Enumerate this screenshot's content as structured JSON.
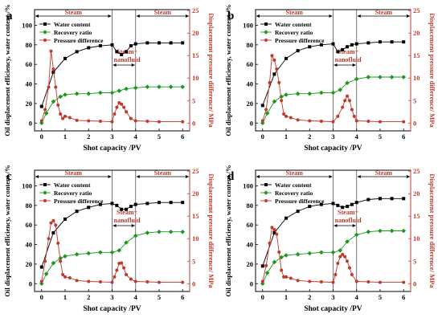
{
  "chart_data": [
    {
      "type": "line",
      "panel_label": "a",
      "xlabel": "Shot capacity /PV",
      "ylabel_left": "Oil displacement efficiency, water content /%",
      "ylabel_right": "Displacement pressure difference/ MPa",
      "xlim": [
        -0.3,
        6.3
      ],
      "ylim_left": [
        -8,
        116
      ],
      "ylim_right": [
        -1.739,
        25.217
      ],
      "x_ticks": [
        "0",
        "1",
        "2",
        "3",
        "4",
        "5",
        "6"
      ],
      "y_ticks_left": [
        "0",
        "20",
        "40",
        "60",
        "80",
        "100"
      ],
      "y_ticks_right": [
        "0",
        "5",
        "10",
        "15",
        "20",
        "25"
      ],
      "stages": [
        {
          "label": "Steam",
          "from": -0.3,
          "to": 3.0
        },
        {
          "label": "Steam+\nnanofluid",
          "from": 3.0,
          "to": 4.0
        },
        {
          "label": "Steam",
          "from": 4.0,
          "to": 6.3
        }
      ],
      "legend_position": "top-left",
      "series": [
        {
          "name": "Water content",
          "axis": "left",
          "color": "#000000",
          "marker": "square",
          "x": [
            0,
            0.5,
            1.0,
            1.5,
            2.0,
            2.5,
            3.0,
            3.2,
            3.4,
            3.6,
            3.8,
            4.0,
            4.5,
            5.0,
            5.5,
            6.0
          ],
          "y": [
            17,
            52,
            66,
            73,
            77,
            79,
            80,
            73,
            70,
            73,
            79,
            81,
            82,
            82,
            82,
            82
          ]
        },
        {
          "name": "Recovery ratio",
          "axis": "left",
          "color": "#1a9a1a",
          "marker": "diamond",
          "x": [
            0,
            0.2,
            0.5,
            0.8,
            1.0,
            1.5,
            2.0,
            2.5,
            3.0,
            3.3,
            3.6,
            4.0,
            4.5,
            5.0,
            5.5,
            6.0
          ],
          "y": [
            0,
            10,
            22,
            27,
            29,
            30,
            30,
            31,
            31,
            33,
            35,
            36,
            37,
            37,
            37,
            37
          ]
        },
        {
          "name": "Pressure difference",
          "axis": "right",
          "color": "#c0392b",
          "marker": "circle",
          "x": [
            0,
            0.15,
            0.3,
            0.4,
            0.5,
            0.6,
            0.7,
            0.8,
            0.9,
            1.0,
            1.2,
            1.5,
            2.0,
            2.5,
            3.0,
            3.1,
            3.2,
            3.3,
            3.4,
            3.5,
            3.6,
            3.8,
            4.0,
            4.5,
            5.0,
            6.0
          ],
          "y": [
            0.5,
            3,
            8,
            16,
            12,
            8,
            4,
            2,
            1,
            1.5,
            1.2,
            0.6,
            0.5,
            0.4,
            0.3,
            2,
            3.5,
            4.5,
            4.2,
            3.5,
            2.5,
            1,
            0.5,
            0.4,
            0.3,
            0.3
          ]
        }
      ]
    },
    {
      "type": "line",
      "panel_label": "b",
      "xlabel": "Shot capacity /PV",
      "ylabel_left": "Oil displacement efficiency, water content /%",
      "ylabel_right": "Displacement pressure difference/ MPa",
      "xlim": [
        -0.3,
        6.3
      ],
      "ylim_left": [
        -8,
        116
      ],
      "ylim_right": [
        -1.739,
        25.217
      ],
      "x_ticks": [
        "0",
        "1",
        "2",
        "3",
        "4",
        "5",
        "6"
      ],
      "y_ticks_left": [
        "0",
        "20",
        "40",
        "60",
        "80",
        "100"
      ],
      "y_ticks_right": [
        "0",
        "5",
        "10",
        "15",
        "20",
        "25"
      ],
      "stages": [
        {
          "label": "Steam",
          "from": -0.3,
          "to": 3.0
        },
        {
          "label": "Steam+\nnanofluid",
          "from": 3.0,
          "to": 4.0
        },
        {
          "label": "Steam",
          "from": 4.0,
          "to": 6.3
        }
      ],
      "legend_position": "top-left",
      "series": [
        {
          "name": "Water content",
          "axis": "left",
          "color": "#000000",
          "marker": "square",
          "x": [
            0,
            0.5,
            1.0,
            1.5,
            2.0,
            2.5,
            3.0,
            3.2,
            3.4,
            3.6,
            3.8,
            4.0,
            4.5,
            5.0,
            5.5,
            6.0
          ],
          "y": [
            18,
            50,
            66,
            74,
            78,
            80,
            81,
            73,
            75,
            78,
            80,
            81,
            82,
            83,
            83,
            83
          ]
        },
        {
          "name": "Recovery ratio",
          "axis": "left",
          "color": "#1a9a1a",
          "marker": "diamond",
          "x": [
            0,
            0.2,
            0.5,
            0.8,
            1.0,
            1.5,
            2.0,
            2.5,
            3.0,
            3.3,
            3.6,
            4.0,
            4.5,
            5.0,
            5.5,
            6.0
          ],
          "y": [
            0,
            10,
            22,
            27,
            29,
            30,
            30,
            31,
            31,
            34,
            41,
            45,
            47,
            47,
            47,
            47
          ]
        },
        {
          "name": "Pressure difference",
          "axis": "right",
          "color": "#c0392b",
          "marker": "circle",
          "x": [
            0,
            0.15,
            0.3,
            0.4,
            0.5,
            0.6,
            0.7,
            0.8,
            0.9,
            1.0,
            1.2,
            1.5,
            2.0,
            2.5,
            3.0,
            3.2,
            3.4,
            3.5,
            3.6,
            3.7,
            3.8,
            3.9,
            4.0,
            4.5,
            5.0,
            6.0
          ],
          "y": [
            0.5,
            3,
            9,
            15,
            14,
            12,
            9,
            5,
            2,
            1.5,
            1.2,
            0.7,
            0.5,
            0.4,
            0.3,
            1.5,
            3.5,
            5,
            6,
            5,
            3,
            1.5,
            0.5,
            0.4,
            0.3,
            0.3
          ]
        }
      ]
    },
    {
      "type": "line",
      "panel_label": "c",
      "xlabel": "Shot capacity /PV",
      "ylabel_left": "Oil displacement efficiency, water content /%",
      "ylabel_right": "Displacement pressure difference/ MPa",
      "xlim": [
        -0.3,
        6.3
      ],
      "ylim_left": [
        -8,
        116
      ],
      "ylim_right": [
        -1.739,
        25.217
      ],
      "x_ticks": [
        "0",
        "1",
        "2",
        "3",
        "4",
        "5",
        "6"
      ],
      "y_ticks_left": [
        "0",
        "20",
        "40",
        "60",
        "80",
        "100"
      ],
      "y_ticks_right": [
        "0",
        "5",
        "10",
        "15",
        "20",
        "25"
      ],
      "stages": [
        {
          "label": "Steam",
          "from": -0.3,
          "to": 3.0
        },
        {
          "label": "Steam+\nnanofluid",
          "from": 3.0,
          "to": 4.0
        },
        {
          "label": "Steam",
          "from": 4.0,
          "to": 6.3
        }
      ],
      "legend_position": "top-left",
      "series": [
        {
          "name": "Water content",
          "axis": "left",
          "color": "#000000",
          "marker": "square",
          "x": [
            0,
            0.5,
            1.0,
            1.5,
            2.0,
            2.5,
            3.0,
            3.2,
            3.4,
            3.6,
            3.8,
            4.0,
            4.5,
            5.0,
            5.5,
            6.0
          ],
          "y": [
            17,
            52,
            66,
            74,
            78,
            81,
            82,
            80,
            76,
            76,
            79,
            81,
            82,
            83,
            83,
            83
          ]
        },
        {
          "name": "Recovery ratio",
          "axis": "left",
          "color": "#1a9a1a",
          "marker": "diamond",
          "x": [
            0,
            0.2,
            0.5,
            0.8,
            1.0,
            1.5,
            2.0,
            2.5,
            3.0,
            3.3,
            3.6,
            4.0,
            4.5,
            5.0,
            5.5,
            6.0
          ],
          "y": [
            0,
            10,
            21,
            26,
            28,
            30,
            31,
            32,
            32,
            34,
            42,
            49,
            52,
            53,
            53,
            53
          ]
        },
        {
          "name": "Pressure difference",
          "axis": "right",
          "color": "#c0392b",
          "marker": "circle",
          "x": [
            0,
            0.15,
            0.3,
            0.4,
            0.5,
            0.6,
            0.7,
            0.8,
            0.9,
            1.0,
            1.2,
            1.5,
            2.0,
            2.5,
            3.0,
            3.1,
            3.2,
            3.3,
            3.4,
            3.5,
            3.6,
            3.8,
            4.0,
            4.5,
            5.0,
            6.0
          ],
          "y": [
            0.5,
            5,
            10,
            13.5,
            14,
            13,
            9,
            5,
            2,
            1.5,
            1.3,
            0.7,
            0.5,
            0.4,
            0.3,
            1.5,
            3,
            4.5,
            4.6,
            3.5,
            2,
            1,
            0.5,
            0.4,
            0.3,
            0.3
          ]
        }
      ]
    },
    {
      "type": "line",
      "panel_label": "d",
      "xlabel": "Shot capacity /PV",
      "ylabel_left": "Oil displacement efficiency, water content /%",
      "ylabel_right": "Displacement pressure difference/ MPa",
      "xlim": [
        -0.3,
        6.3
      ],
      "ylim_left": [
        -8,
        116
      ],
      "ylim_right": [
        -1.739,
        25.217
      ],
      "x_ticks": [
        "0",
        "1",
        "2",
        "3",
        "4",
        "5",
        "6"
      ],
      "y_ticks_left": [
        "0",
        "20",
        "40",
        "60",
        "80",
        "100"
      ],
      "y_ticks_right": [
        "0",
        "5",
        "10",
        "15",
        "20",
        "25"
      ],
      "stages": [
        {
          "label": "Steam",
          "from": -0.3,
          "to": 3.0
        },
        {
          "label": "Steam+\nnanofluid",
          "from": 3.0,
          "to": 4.0
        },
        {
          "label": "Steam",
          "from": 4.0,
          "to": 6.3
        }
      ],
      "legend_position": "top-left",
      "series": [
        {
          "name": "Water content",
          "axis": "left",
          "color": "#000000",
          "marker": "square",
          "x": [
            0,
            0.5,
            1.0,
            1.5,
            2.0,
            2.5,
            3.0,
            3.2,
            3.4,
            3.6,
            3.8,
            4.0,
            4.5,
            5.0,
            5.5,
            6.0
          ],
          "y": [
            18,
            52,
            67,
            74,
            79,
            81,
            82,
            80,
            78,
            79,
            81,
            83,
            86,
            87,
            87,
            87
          ]
        },
        {
          "name": "Recovery ratio",
          "axis": "left",
          "color": "#1a9a1a",
          "marker": "diamond",
          "x": [
            0,
            0.2,
            0.5,
            0.8,
            1.0,
            1.5,
            2.0,
            2.5,
            3.0,
            3.3,
            3.6,
            4.0,
            4.5,
            5.0,
            5.5,
            6.0
          ],
          "y": [
            0,
            11,
            22,
            27,
            29,
            30,
            31,
            32,
            32,
            34,
            43,
            50,
            53,
            54,
            54,
            54
          ]
        },
        {
          "name": "Pressure difference",
          "axis": "right",
          "color": "#c0392b",
          "marker": "circle",
          "x": [
            0,
            0.15,
            0.3,
            0.4,
            0.5,
            0.6,
            0.7,
            0.8,
            0.9,
            1.0,
            1.2,
            1.5,
            2.0,
            2.5,
            3.0,
            3.1,
            3.2,
            3.3,
            3.4,
            3.5,
            3.6,
            3.7,
            3.8,
            4.0,
            4.5,
            5.0,
            6.0
          ],
          "y": [
            0.5,
            4,
            9,
            12.5,
            12,
            11,
            7,
            3,
            1.5,
            1.5,
            1.2,
            0.7,
            0.5,
            0.4,
            0.3,
            2,
            4.5,
            6,
            6.5,
            6,
            5,
            3.5,
            2,
            0.5,
            0.4,
            0.3,
            0.3
          ]
        }
      ]
    }
  ]
}
